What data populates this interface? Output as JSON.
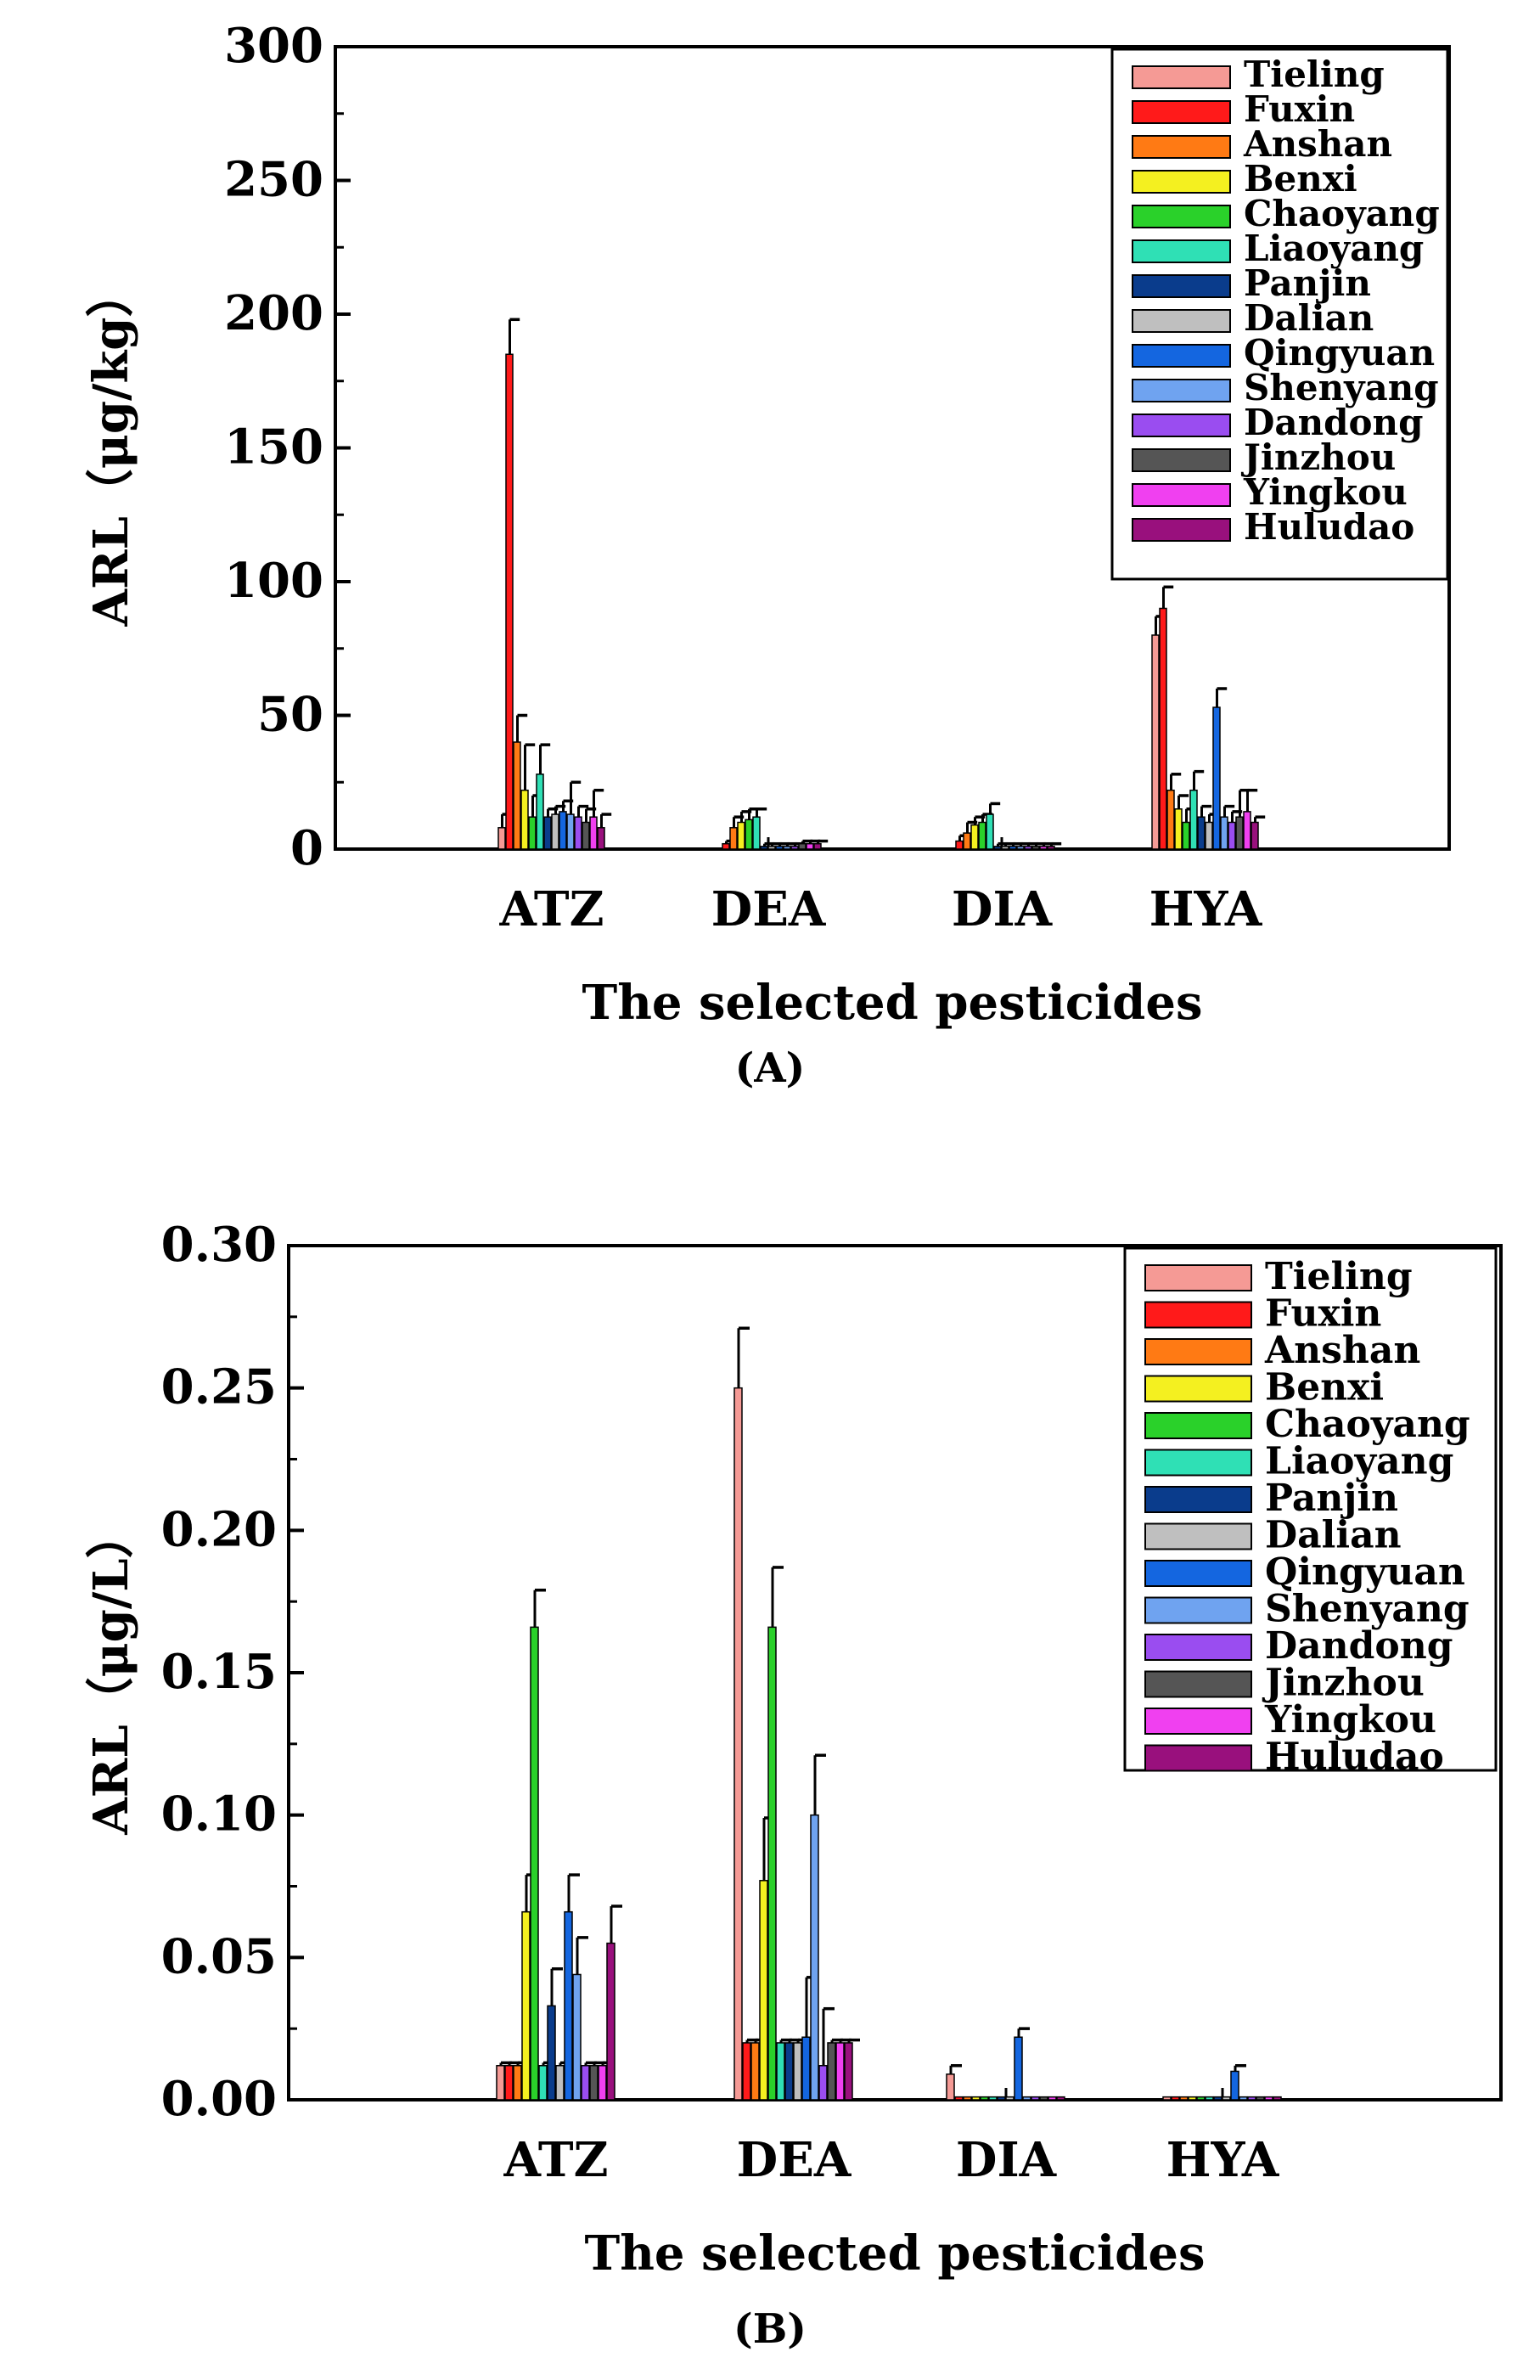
{
  "regions": [
    "Tieling",
    "Fuxin",
    "Anshan",
    "Benxi",
    "Chaoyang",
    "Liaoyang",
    "Panjin",
    "Dalian",
    "Qingyuan",
    "Shenyang",
    "Dandong",
    "Jinzhou",
    "Yingkou",
    "Huludao"
  ],
  "colors": [
    "#f59a95",
    "#ff1a1a",
    "#ff7a14",
    "#f4f020",
    "#2ad12a",
    "#2fe0b5",
    "#0a3c8c",
    "#bfbfbf",
    "#1466e0",
    "#6fa3f0",
    "#9a4df0",
    "#555555",
    "#f040f0",
    "#99107d"
  ],
  "panel_labels": [
    "(A)",
    "(B)"
  ],
  "chart_data": [
    {
      "type": "bar",
      "title": "",
      "xlabel": "The selected pesticides",
      "ylabel": "ARL（μg/kg）",
      "ylim": [
        0,
        300
      ],
      "yticks": [
        "0",
        "50",
        "100",
        "150",
        "200",
        "250",
        "300"
      ],
      "categories": [
        "ATZ",
        "DEA",
        "DIA",
        "HYA"
      ],
      "legend_position": "top-right",
      "series": [
        {
          "name": "Tieling",
          "values": [
            8,
            0,
            0,
            80
          ],
          "errors": [
            5,
            0,
            0,
            7
          ]
        },
        {
          "name": "Fuxin",
          "values": [
            185,
            2,
            3,
            90
          ],
          "errors": [
            13,
            1,
            2,
            8
          ]
        },
        {
          "name": "Anshan",
          "values": [
            40,
            8,
            6,
            22
          ],
          "errors": [
            10,
            4,
            4,
            6
          ]
        },
        {
          "name": "Benxi",
          "values": [
            22,
            10,
            9,
            15
          ],
          "errors": [
            17,
            4,
            3,
            5
          ]
        },
        {
          "name": "Chaoyang",
          "values": [
            12,
            11,
            10,
            10
          ],
          "errors": [
            8,
            4,
            3,
            5
          ]
        },
        {
          "name": "Liaoyang",
          "values": [
            28,
            12,
            13,
            22
          ],
          "errors": [
            11,
            3,
            4,
            7
          ]
        },
        {
          "name": "Panjin",
          "values": [
            12,
            1,
            1,
            12
          ],
          "errors": [
            3,
            1,
            1,
            4
          ]
        },
        {
          "name": "Dalian",
          "values": [
            13,
            1,
            1,
            10
          ],
          "errors": [
            3,
            1,
            1,
            3
          ]
        },
        {
          "name": "Qingyuan",
          "values": [
            14,
            1,
            1,
            53
          ],
          "errors": [
            4,
            1,
            1,
            7
          ]
        },
        {
          "name": "Shenyang",
          "values": [
            13,
            1,
            1,
            12
          ],
          "errors": [
            12,
            1,
            1,
            4
          ]
        },
        {
          "name": "Dandong",
          "values": [
            12,
            1,
            1,
            10
          ],
          "errors": [
            4,
            1,
            1,
            4
          ]
        },
        {
          "name": "Jinzhou",
          "values": [
            10,
            2,
            1,
            12
          ],
          "errors": [
            5,
            1,
            1,
            10
          ]
        },
        {
          "name": "Yingkou",
          "values": [
            12,
            2,
            1,
            14
          ],
          "errors": [
            10,
            1,
            1,
            8
          ]
        },
        {
          "name": "Huludao",
          "values": [
            8,
            2,
            1,
            10
          ],
          "errors": [
            5,
            1,
            1,
            2
          ]
        }
      ]
    },
    {
      "type": "bar",
      "title": "",
      "xlabel": "The selected pesticides",
      "ylabel": "ARL（μg/L）",
      "ylim": [
        0,
        0.3
      ],
      "yticks": [
        "0.00",
        "0.05",
        "0.10",
        "0.15",
        "0.20",
        "0.25",
        "0.30"
      ],
      "categories": [
        "ATZ",
        "DEA",
        "DIA",
        "HYA"
      ],
      "legend_position": "top-right",
      "series": [
        {
          "name": "Tieling",
          "values": [
            0.012,
            0.25,
            0.009,
            0.001
          ],
          "errors": [
            0.001,
            0.021,
            0.003,
            0
          ]
        },
        {
          "name": "Fuxin",
          "values": [
            0.012,
            0.02,
            0.001,
            0.001
          ],
          "errors": [
            0.001,
            0.001,
            0,
            0
          ]
        },
        {
          "name": "Anshan",
          "values": [
            0.012,
            0.02,
            0.001,
            0.001
          ],
          "errors": [
            0.001,
            0.001,
            0,
            0
          ]
        },
        {
          "name": "Benxi",
          "values": [
            0.066,
            0.077,
            0.001,
            0.001
          ],
          "errors": [
            0.013,
            0.022,
            0,
            0
          ]
        },
        {
          "name": "Chaoyang",
          "values": [
            0.166,
            0.166,
            0.001,
            0.001
          ],
          "errors": [
            0.013,
            0.021,
            0,
            0
          ]
        },
        {
          "name": "Liaoyang",
          "values": [
            0.012,
            0.02,
            0.001,
            0.001
          ],
          "errors": [
            0.001,
            0.001,
            0,
            0
          ]
        },
        {
          "name": "Panjin",
          "values": [
            0.033,
            0.02,
            0.001,
            0.001
          ],
          "errors": [
            0.013,
            0.001,
            0,
            0
          ]
        },
        {
          "name": "Dalian",
          "values": [
            0.012,
            0.02,
            0.001,
            0.001
          ],
          "errors": [
            0.001,
            0.001,
            0,
            0
          ]
        },
        {
          "name": "Qingyuan",
          "values": [
            0.066,
            0.022,
            0.022,
            0.01
          ],
          "errors": [
            0.013,
            0.021,
            0.003,
            0.002
          ]
        },
        {
          "name": "Shenyang",
          "values": [
            0.044,
            0.1,
            0.001,
            0.001
          ],
          "errors": [
            0.013,
            0.021,
            0,
            0
          ]
        },
        {
          "name": "Dandong",
          "values": [
            0.012,
            0.012,
            0.001,
            0.001
          ],
          "errors": [
            0.001,
            0.02,
            0,
            0
          ]
        },
        {
          "name": "Jinzhou",
          "values": [
            0.012,
            0.02,
            0.001,
            0.001
          ],
          "errors": [
            0.001,
            0.001,
            0,
            0
          ]
        },
        {
          "name": "Yingkou",
          "values": [
            0.012,
            0.02,
            0.001,
            0.001
          ],
          "errors": [
            0.001,
            0.001,
            0,
            0
          ]
        },
        {
          "name": "Huludao",
          "values": [
            0.055,
            0.02,
            0.001,
            0.001
          ],
          "errors": [
            0.013,
            0.001,
            0,
            0
          ]
        }
      ]
    }
  ]
}
